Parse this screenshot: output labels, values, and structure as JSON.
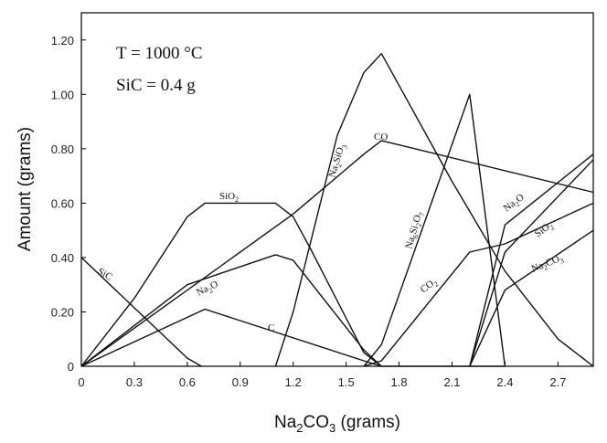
{
  "chart_data": {
    "type": "line",
    "xlabel_main": "Na",
    "xlabel_sub1": "2",
    "xlabel_mid": "CO",
    "xlabel_sub2": "3",
    "xlabel_tail": " (grams)",
    "ylabel": "Amount (grams)",
    "xlim": [
      0,
      2.9
    ],
    "ylim": [
      0,
      1.3
    ],
    "xticks": [
      0,
      0.3,
      0.6,
      0.9,
      1.2,
      1.5,
      1.8,
      2.1,
      2.4,
      2.7
    ],
    "xtick_labels": [
      "0",
      "0.3",
      "0.6",
      "0.9",
      "1.2",
      "1.5",
      "1.8",
      "2.1",
      "2.4",
      "2.7"
    ],
    "yticks": [
      0,
      0.2,
      0.4,
      0.6,
      0.8,
      1.0,
      1.2
    ],
    "ytick_labels": [
      "0",
      "0.20",
      "0.40",
      "0.60",
      "0.80",
      "1.00",
      "1.20"
    ],
    "annotations": [
      "T = 1000 °C",
      "SiC = 0.4 g"
    ],
    "series": [
      {
        "name": "SiC",
        "label_main": "SiC",
        "label_sub": "",
        "x": [
          0,
          0.6,
          0.68
        ],
        "y": [
          0.4,
          0.03,
          0
        ]
      },
      {
        "name": "SiO2",
        "label_main": "SiO",
        "label_sub": "2",
        "x": [
          0,
          0.3,
          0.6,
          0.7,
          1.1,
          1.2,
          1.3,
          1.6,
          1.7,
          1.9,
          2.2,
          2.4
        ],
        "y": [
          0,
          0.25,
          0.55,
          0.6,
          0.6,
          0.55,
          0.43,
          0.05,
          0,
          0,
          0,
          0
        ]
      },
      {
        "name": "Na2O",
        "label_main": "Na",
        "label_sub": "2",
        "label_tail": "O",
        "x": [
          0,
          0.6,
          1.1,
          1.2,
          1.6,
          1.7
        ],
        "y": [
          0,
          0.3,
          0.41,
          0.39,
          0.06,
          0
        ]
      },
      {
        "name": "C",
        "label_main": "C",
        "label_sub": "",
        "x": [
          0,
          0.7,
          1.6,
          1.7
        ],
        "y": [
          0,
          0.21,
          0.02,
          0
        ]
      },
      {
        "name": "CO",
        "label_main": "CO",
        "label_sub": "",
        "x": [
          0,
          1.2,
          1.6,
          1.7,
          2.9
        ],
        "y": [
          0,
          0.56,
          0.78,
          0.83,
          0.64
        ]
      },
      {
        "name": "Na2SiO3",
        "label_main": "Na",
        "label_sub": "2",
        "label_tail": "SiO",
        "label_sub2": "3",
        "x": [
          1.1,
          1.2,
          1.45,
          1.6,
          1.7,
          2.1,
          2.4,
          2.7,
          2.9
        ],
        "y": [
          0,
          0.2,
          0.85,
          1.08,
          1.15,
          0.68,
          0.35,
          0.1,
          0
        ]
      },
      {
        "name": "Na6Si2O7",
        "label_main": "Na",
        "label_sub": "6",
        "label_tail": "Si",
        "label_sub2": "2",
        "label_tail2": "O",
        "label_sub3": "7",
        "x": [
          1.6,
          1.7,
          2.2,
          2.4
        ],
        "y": [
          0,
          0.08,
          1.0,
          0
        ]
      },
      {
        "name": "CO2",
        "label_main": "CO",
        "label_sub": "2",
        "x": [
          1.6,
          1.7,
          2.2,
          2.4,
          2.9
        ],
        "y": [
          0,
          0.02,
          0.42,
          0.45,
          0.6
        ]
      },
      {
        "name": "Na2O_2",
        "label_main": "Na",
        "label_sub": "2",
        "label_tail": "O",
        "x": [
          2.2,
          2.4,
          2.9
        ],
        "y": [
          0,
          0.52,
          0.78
        ]
      },
      {
        "name": "SiO2_2",
        "label_main": "SiO",
        "label_sub": "2",
        "x": [
          2.2,
          2.4,
          2.9
        ],
        "y": [
          0,
          0.42,
          0.76
        ]
      },
      {
        "name": "Na2CO3",
        "label_main": "Na",
        "label_sub": "2",
        "label_tail": "CO",
        "label_sub2": "3",
        "x": [
          2.2,
          2.4,
          2.9
        ],
        "y": [
          0,
          0.28,
          0.5
        ]
      }
    ]
  }
}
